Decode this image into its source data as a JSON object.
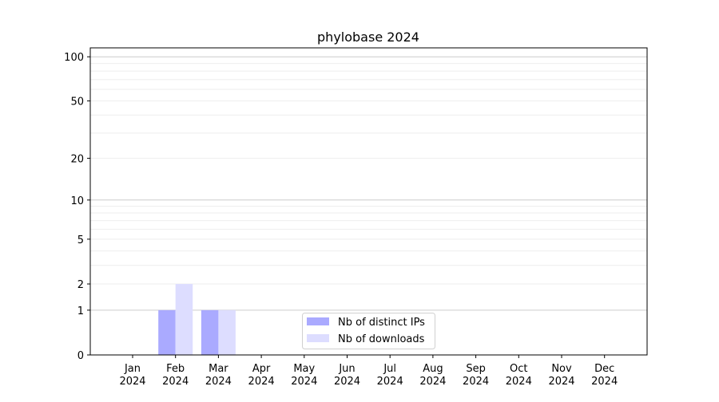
{
  "chart_data": {
    "type": "bar",
    "title": "phylobase 2024",
    "xlabel": "",
    "ylabel": "",
    "y_scale": "symlog",
    "ylim": [
      0,
      115
    ],
    "y_ticks": [
      0,
      1,
      2,
      5,
      10,
      20,
      50,
      100
    ],
    "grid": true,
    "legend_position": "lower-center",
    "categories": [
      "Jan\n2024",
      "Feb\n2024",
      "Mar\n2024",
      "Apr\n2024",
      "May\n2024",
      "Jun\n2024",
      "Jul\n2024",
      "Aug\n2024",
      "Sep\n2024",
      "Oct\n2024",
      "Nov\n2024",
      "Dec\n2024"
    ],
    "series": [
      {
        "name": "Nb of distinct IPs",
        "color": "#aaaaff",
        "values": [
          0,
          1,
          1,
          0,
          0,
          0,
          0,
          0,
          0,
          0,
          0,
          0
        ]
      },
      {
        "name": "Nb of downloads",
        "color": "#ddddff",
        "values": [
          0,
          2,
          1,
          0,
          0,
          0,
          0,
          0,
          0,
          0,
          0,
          0
        ]
      }
    ]
  }
}
